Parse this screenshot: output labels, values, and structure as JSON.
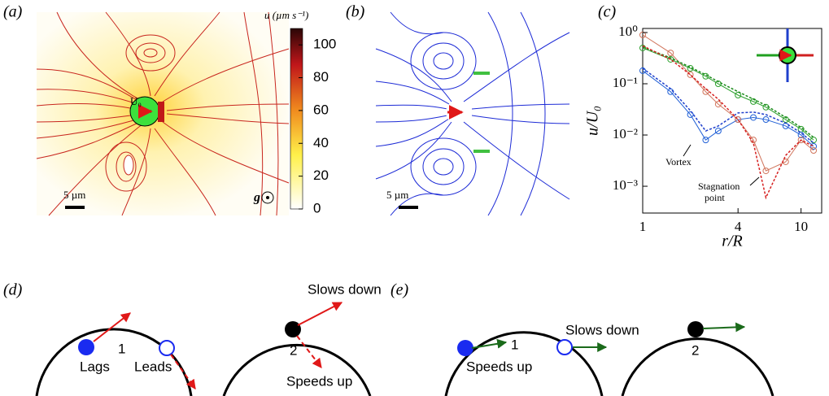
{
  "panels": {
    "a": {
      "label": "(a)",
      "colorbar": {
        "label": "u (µm s⁻¹)",
        "lim": [
          0,
          110
        ],
        "ticks": [
          0,
          20,
          40,
          60,
          80,
          100
        ]
      },
      "scale_bar": "5 µm",
      "velocity_label": "U₀",
      "gravity_label": "g"
    },
    "b": {
      "label": "(b)",
      "scale_bar": "5 µm"
    },
    "c": {
      "label": "(c)",
      "chart_data": {
        "type": "line",
        "xlabel": "r/R",
        "ylabel": "u/U₀",
        "log_x": true,
        "log_y": true,
        "xlim": [
          1,
          13.5
        ],
        "ylim": [
          0.0003,
          1.2
        ],
        "xticks": [
          1,
          4,
          10
        ],
        "yticks": [
          {
            "value": 1,
            "label": "10⁰"
          },
          {
            "value": 0.1,
            "label": "10⁻¹"
          },
          {
            "value": 0.01,
            "label": "10⁻²"
          },
          {
            "value": 0.001,
            "label": "10⁻³"
          }
        ],
        "annotations": [
          "Vortex",
          [
            "Stagnation",
            "point"
          ]
        ],
        "x": [
          1,
          1.5,
          2,
          2.5,
          3,
          4,
          5,
          6,
          8,
          10,
          12
        ],
        "series": [
          {
            "color": "#2ca02c",
            "dashed": false,
            "values": [
              0.5,
              0.3,
              0.2,
              0.14,
              0.1,
              0.06,
              0.045,
              0.035,
              0.02,
              0.013,
              0.008
            ]
          },
          {
            "color": "#1f5fd6",
            "dashed": false,
            "values": [
              0.18,
              0.07,
              0.025,
              0.008,
              0.012,
              0.02,
              0.022,
              0.02,
              0.015,
              0.01,
              0.006
            ]
          },
          {
            "color": "#d0735a",
            "dashed": false,
            "values": [
              0.9,
              0.4,
              0.15,
              0.07,
              0.04,
              0.02,
              0.008,
              0.002,
              0.003,
              0.008,
              0.005
            ]
          },
          {
            "color": "#1a8a1a",
            "dashed": true,
            "values": [
              0.52,
              0.32,
              0.21,
              0.15,
              0.11,
              0.07,
              0.05,
              0.038,
              0.022,
              0.014,
              0.009
            ]
          },
          {
            "color": "#1f3fcc",
            "dashed": true,
            "values": [
              0.2,
              0.08,
              0.03,
              0.012,
              0.015,
              0.027,
              0.028,
              0.025,
              0.017,
              0.011,
              0.007
            ]
          },
          {
            "color": "#d62020",
            "dashed": true,
            "values": [
              0.55,
              0.3,
              0.15,
              0.08,
              0.05,
              0.02,
              0.007,
              0.0006,
              0.004,
              0.008,
              0.006
            ]
          }
        ]
      }
    },
    "d": {
      "label": "(d)",
      "numbers": [
        "1",
        "2"
      ],
      "annotations": [
        "Lags",
        "Leads",
        "Slows down",
        "Speeds up"
      ]
    },
    "e": {
      "label": "(e)",
      "numbers": [
        "1",
        "2"
      ],
      "annotations": [
        "Speeds up",
        "Slows down"
      ]
    }
  }
}
